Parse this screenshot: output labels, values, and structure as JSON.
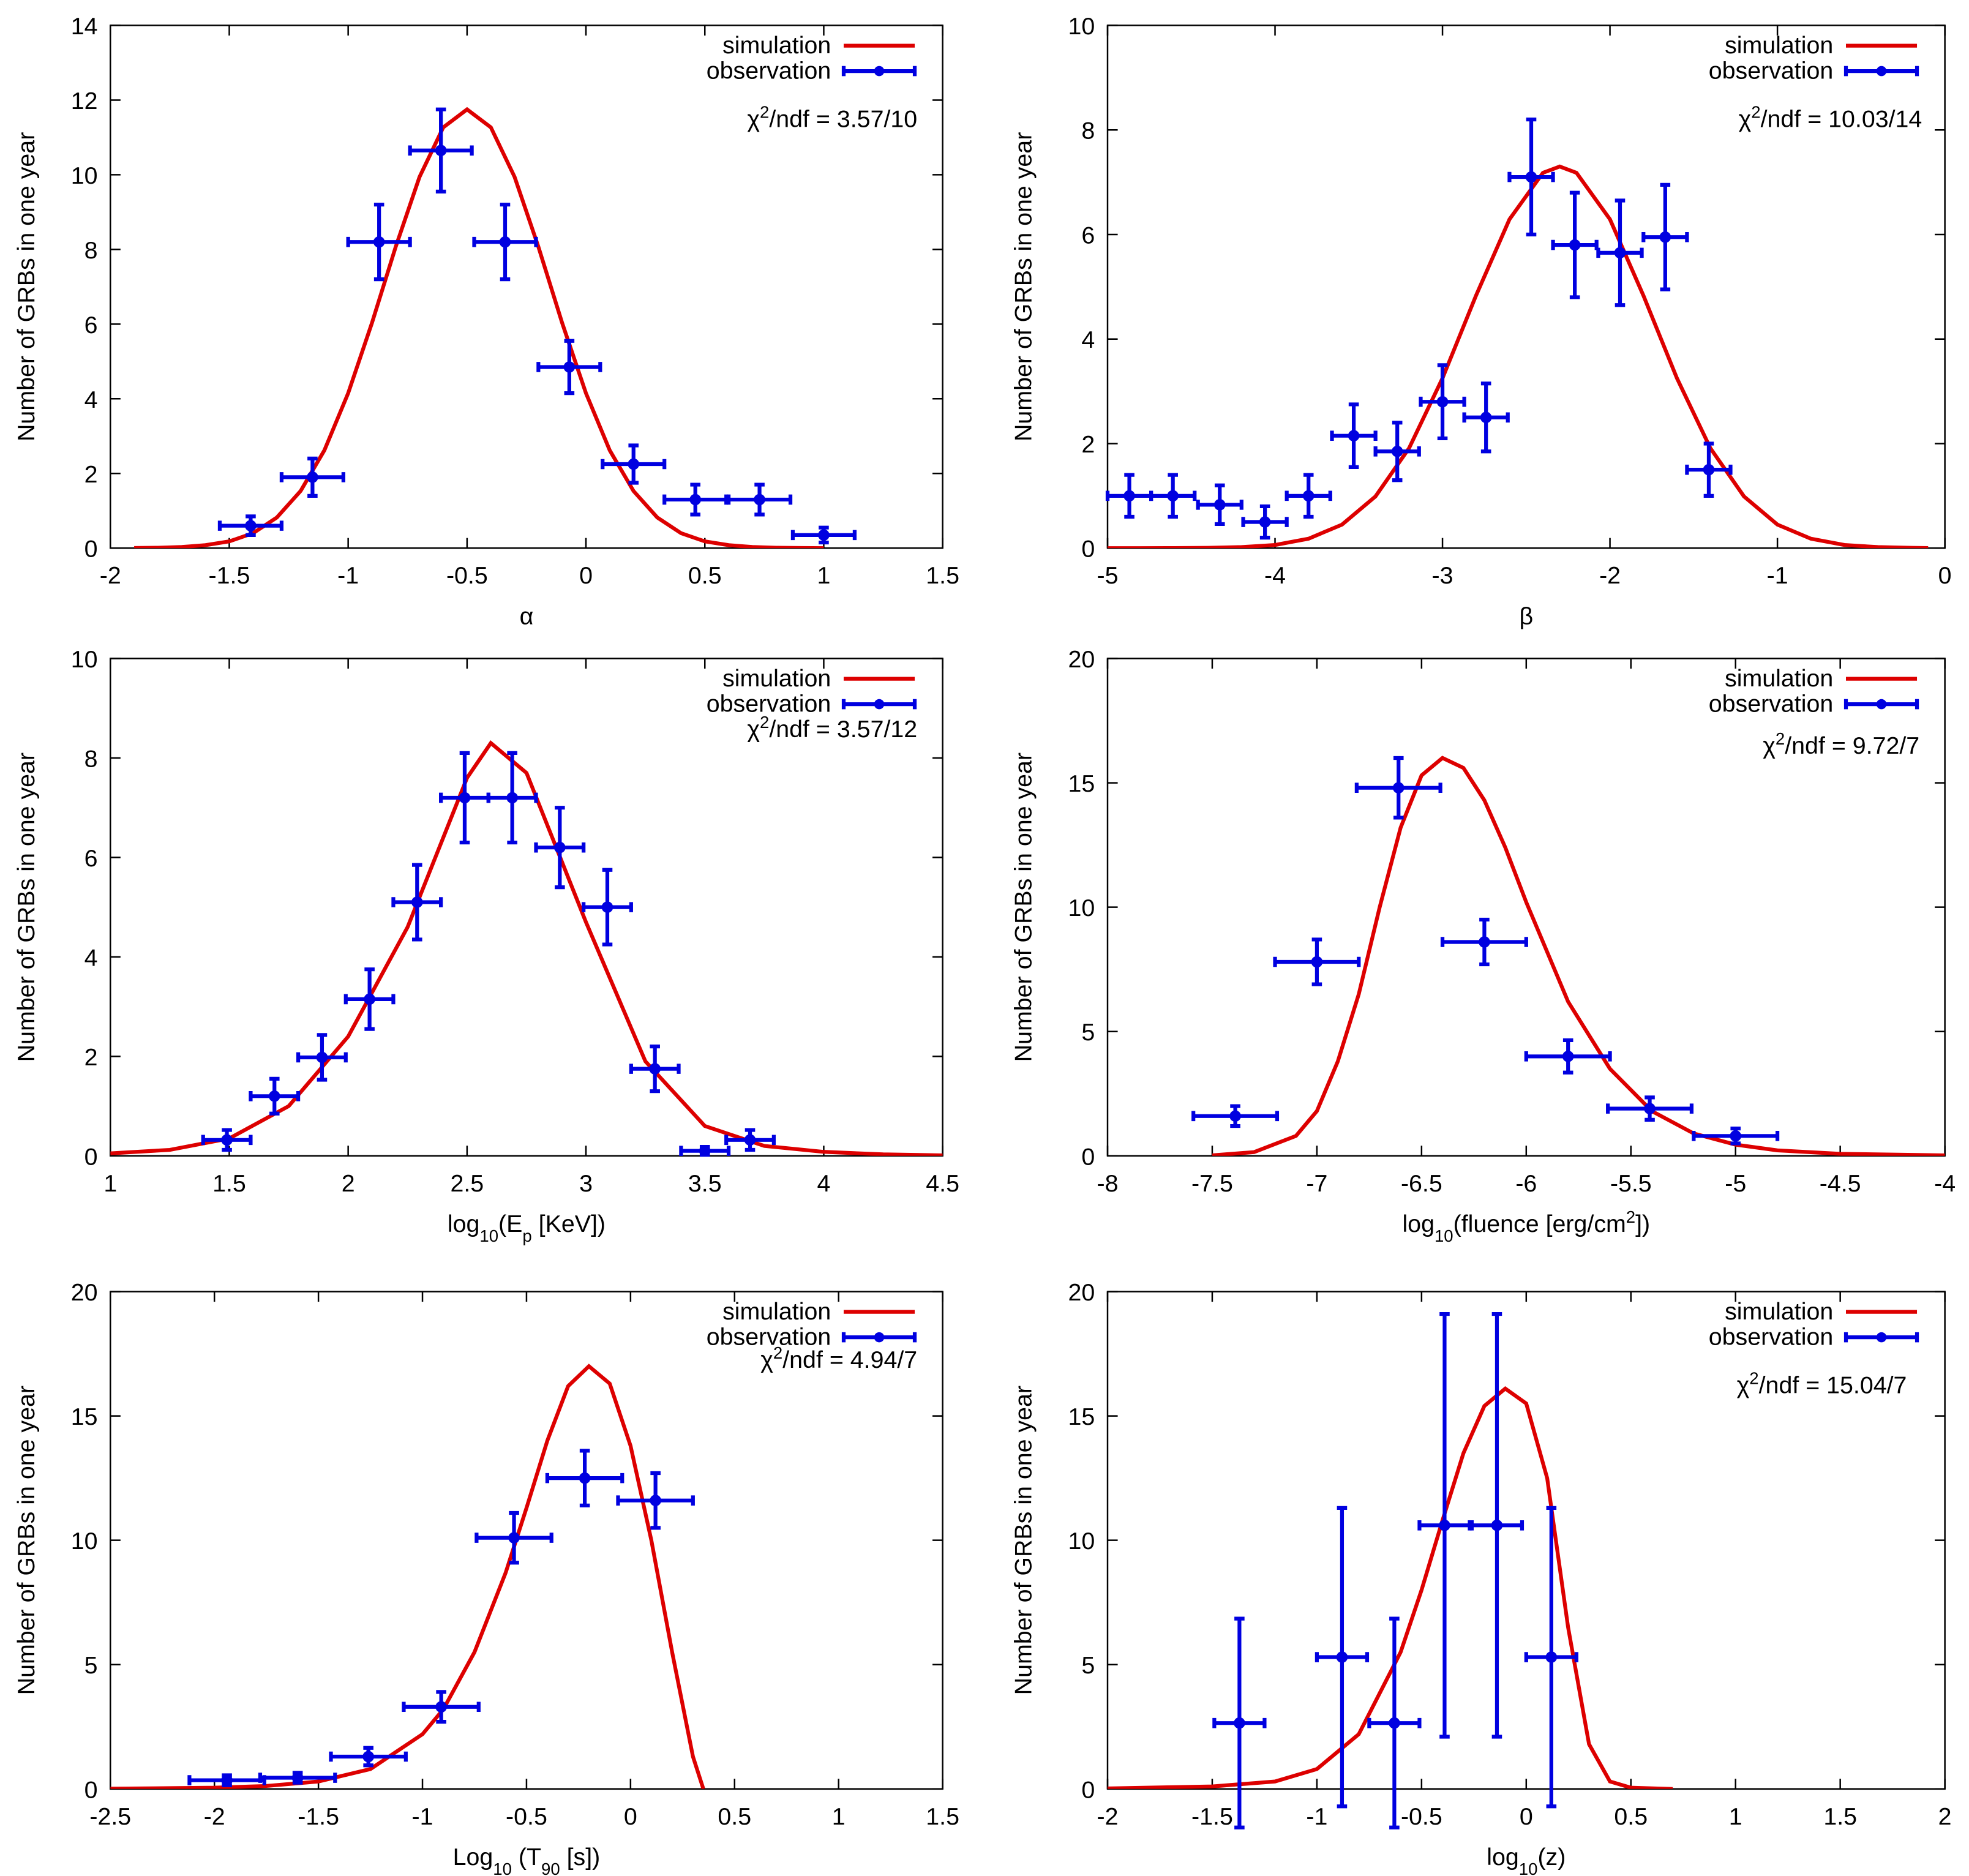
{
  "chart_data": [
    {
      "type": "line",
      "ylabel": "Number of GRBs in one year",
      "xlabel": [
        {
          "text": "α"
        }
      ],
      "annotation": [
        {
          "text": "χ"
        },
        {
          "text": "2",
          "shift": "super"
        },
        {
          "text": "/ndf = 3.57/10"
        }
      ],
      "xlim": [
        -2,
        1.5
      ],
      "xticks": [
        -2,
        -1.5,
        -1,
        -0.5,
        0,
        0.5,
        1,
        1.5
      ],
      "ylim": [
        0,
        14
      ],
      "yticks": [
        0,
        2,
        4,
        6,
        8,
        10,
        12,
        14
      ],
      "series": [
        {
          "name": "simulation",
          "style": "line",
          "color": "#dd0000",
          "x": [
            -1.9,
            -1.8,
            -1.7,
            -1.6,
            -1.5,
            -1.4,
            -1.3,
            -1.2,
            -1.1,
            -1.0,
            -0.9,
            -0.8,
            -0.7,
            -0.6,
            -0.5,
            -0.4,
            -0.3,
            -0.2,
            -0.1,
            0,
            0.1,
            0.2,
            0.3,
            0.4,
            0.5,
            0.6,
            0.7,
            0.8,
            0.9,
            1.0
          ],
          "values": [
            0.003,
            0.01,
            0.03,
            0.08,
            0.18,
            0.4,
            0.82,
            1.53,
            2.62,
            4.15,
            6.03,
            8.07,
            9.94,
            11.27,
            11.75,
            11.27,
            9.94,
            8.07,
            6.03,
            4.15,
            2.62,
            1.53,
            0.82,
            0.4,
            0.18,
            0.08,
            0.03,
            0.01,
            0.003,
            0
          ]
        },
        {
          "name": "observation",
          "style": "errorbar",
          "color": "#0000e0",
          "x": [
            -1.41,
            -1.15,
            -0.87,
            -0.61,
            -0.34,
            -0.07,
            0.2,
            0.46,
            0.73,
            1.0
          ],
          "values": [
            0.6,
            1.9,
            8.2,
            10.65,
            8.2,
            4.85,
            2.25,
            1.3,
            1.3,
            0.35
          ],
          "yerr": [
            0.25,
            0.5,
            1.0,
            1.1,
            1.0,
            0.7,
            0.5,
            0.4,
            0.4,
            0.2
          ],
          "xerr": [
            0.13,
            0.13,
            0.13,
            0.13,
            0.13,
            0.13,
            0.13,
            0.13,
            0.13,
            0.13
          ]
        }
      ]
    },
    {
      "type": "line",
      "ylabel": "Number of GRBs in one year",
      "xlabel": [
        {
          "text": "β"
        }
      ],
      "annotation": [
        {
          "text": "χ"
        },
        {
          "text": "2",
          "shift": "super"
        },
        {
          "text": "/ndf = 10.03/14"
        }
      ],
      "xlim": [
        -5,
        0
      ],
      "xticks": [
        -5,
        -4,
        -3,
        -2,
        -1,
        0
      ],
      "ylim": [
        0,
        10
      ],
      "yticks": [
        0,
        2,
        4,
        6,
        8,
        10
      ],
      "series": [
        {
          "name": "simulation",
          "style": "line",
          "color": "#dd0000",
          "x": [
            -5,
            -4.8,
            -4.6,
            -4.4,
            -4.2,
            -4.0,
            -3.8,
            -3.6,
            -3.4,
            -3.2,
            -3.0,
            -2.8,
            -2.6,
            -2.4,
            -2.3,
            -2.2,
            -2.0,
            -1.8,
            -1.6,
            -1.4,
            -1.2,
            -1.0,
            -0.8,
            -0.6,
            -0.4,
            -0.2,
            -0.1
          ],
          "values": [
            0,
            0.0002,
            0.001,
            0.005,
            0.02,
            0.06,
            0.18,
            0.45,
            0.99,
            1.91,
            3.25,
            4.83,
            6.29,
            7.18,
            7.3,
            7.18,
            6.29,
            4.83,
            3.25,
            1.91,
            0.99,
            0.45,
            0.18,
            0.06,
            0.02,
            0.005,
            0.002
          ]
        },
        {
          "name": "observation",
          "style": "errorbar",
          "color": "#0000e0",
          "x": [
            -4.87,
            -4.61,
            -4.33,
            -4.06,
            -3.8,
            -3.53,
            -3.27,
            -3.0,
            -2.74,
            -2.47,
            -2.21,
            -1.94,
            -1.67,
            -1.41
          ],
          "values": [
            1.0,
            1.0,
            0.83,
            0.5,
            1.0,
            2.15,
            1.85,
            2.8,
            2.5,
            7.1,
            5.8,
            5.65,
            5.95,
            1.5
          ],
          "yerr": [
            0.4,
            0.4,
            0.37,
            0.3,
            0.4,
            0.6,
            0.55,
            0.7,
            0.65,
            1.1,
            1.0,
            1.0,
            1.0,
            0.5
          ],
          "xerr": [
            0.13,
            0.13,
            0.13,
            0.13,
            0.13,
            0.13,
            0.13,
            0.13,
            0.13,
            0.13,
            0.13,
            0.13,
            0.13,
            0.13
          ]
        }
      ]
    },
    {
      "type": "line",
      "ylabel": "Number of GRBs in one year",
      "xlabel": [
        {
          "text": "log"
        },
        {
          "text": "10",
          "shift": "sub"
        },
        {
          "text": "(E"
        },
        {
          "text": "p",
          "shift": "sub"
        },
        {
          "text": " [KeV])"
        }
      ],
      "annotation": [
        {
          "text": "χ"
        },
        {
          "text": "2",
          "shift": "super"
        },
        {
          "text": "/ndf = 3.57/12"
        }
      ],
      "xlim": [
        1,
        4.5
      ],
      "xticks": [
        1,
        1.5,
        2,
        2.5,
        3,
        3.5,
        4,
        4.5
      ],
      "ylim": [
        0,
        10
      ],
      "yticks": [
        0,
        2,
        4,
        6,
        8,
        10
      ],
      "series": [
        {
          "name": "simulation",
          "style": "line",
          "color": "#dd0000",
          "x": [
            1.0,
            1.25,
            1.5,
            1.75,
            2.0,
            2.25,
            2.5,
            2.6,
            2.75,
            3.0,
            3.25,
            3.5,
            3.75,
            4.0,
            4.25,
            4.5
          ],
          "values": [
            0.05,
            0.12,
            0.35,
            1.0,
            2.4,
            4.6,
            7.6,
            8.3,
            7.7,
            4.7,
            1.9,
            0.6,
            0.2,
            0.08,
            0.03,
            0.01
          ]
        },
        {
          "name": "observation",
          "style": "errorbar",
          "color": "#0000e0",
          "x": [
            1.49,
            1.69,
            1.89,
            2.09,
            2.29,
            2.49,
            2.69,
            2.89,
            3.09,
            3.29,
            3.5,
            3.69
          ],
          "values": [
            0.32,
            1.2,
            1.98,
            3.15,
            5.1,
            7.2,
            7.2,
            6.2,
            5.0,
            1.75,
            0.1,
            0.32
          ],
          "yerr": [
            0.2,
            0.35,
            0.45,
            0.6,
            0.75,
            0.9,
            0.9,
            0.8,
            0.75,
            0.45,
            0.08,
            0.2
          ],
          "xerr": [
            0.1,
            0.1,
            0.1,
            0.1,
            0.1,
            0.1,
            0.1,
            0.1,
            0.1,
            0.1,
            0.1,
            0.1
          ]
        }
      ]
    },
    {
      "type": "line",
      "ylabel": "Number of GRBs in one year",
      "xlabel": [
        {
          "text": "log"
        },
        {
          "text": "10",
          "shift": "sub"
        },
        {
          "text": "(fluence [erg/cm"
        },
        {
          "text": "2",
          "shift": "super"
        },
        {
          "text": "])"
        }
      ],
      "annotation": [
        {
          "text": "χ"
        },
        {
          "text": "2",
          "shift": "super"
        },
        {
          "text": "/ndf = 9.72/7"
        }
      ],
      "xlim": [
        -8,
        -4
      ],
      "xticks": [
        -8,
        -7.5,
        -7,
        -6.5,
        -6,
        -5.5,
        -5,
        -4.5,
        -4
      ],
      "ylim": [
        0,
        20
      ],
      "yticks": [
        0,
        5,
        10,
        15,
        20
      ],
      "series": [
        {
          "name": "simulation",
          "style": "line",
          "color": "#dd0000",
          "x": [
            -7.5,
            -7.3,
            -7.1,
            -7.0,
            -6.9,
            -6.8,
            -6.7,
            -6.6,
            -6.5,
            -6.4,
            -6.3,
            -6.2,
            -6.1,
            -6.0,
            -5.8,
            -5.6,
            -5.4,
            -5.2,
            -5.0,
            -4.8,
            -4.5,
            -4.0
          ],
          "values": [
            0.02,
            0.15,
            0.8,
            1.8,
            3.8,
            6.5,
            10,
            13.2,
            15.3,
            16.0,
            15.6,
            14.3,
            12.4,
            10.2,
            6.2,
            3.5,
            1.8,
            0.9,
            0.45,
            0.22,
            0.08,
            0.02
          ]
        },
        {
          "name": "observation",
          "style": "errorbar",
          "color": "#0000e0",
          "x": [
            -7.39,
            -7.0,
            -6.61,
            -6.2,
            -5.8,
            -5.41,
            -5.0
          ],
          "values": [
            1.6,
            7.8,
            14.8,
            8.6,
            4.0,
            1.9,
            0.8
          ],
          "yerr": [
            0.4,
            0.9,
            1.2,
            0.9,
            0.65,
            0.45,
            0.3
          ],
          "xerr": [
            0.2,
            0.2,
            0.2,
            0.2,
            0.2,
            0.2,
            0.2
          ]
        }
      ]
    },
    {
      "type": "line",
      "ylabel": "Number of GRBs in one year",
      "xlabel": [
        {
          "text": "Log"
        },
        {
          "text": "10",
          "shift": "sub"
        },
        {
          "text": " (T"
        },
        {
          "text": "90",
          "shift": "sub"
        },
        {
          "text": " [s])"
        }
      ],
      "annotation": [
        {
          "text": "χ"
        },
        {
          "text": "2",
          "shift": "super"
        },
        {
          "text": "/ndf = 4.94/7"
        }
      ],
      "xlim": [
        -2.5,
        1.5
      ],
      "xticks": [
        -2.5,
        -2,
        -1.5,
        -1,
        -0.5,
        0,
        0.5,
        1,
        1.5
      ],
      "ylim": [
        0,
        20
      ],
      "yticks": [
        0,
        5,
        10,
        15,
        20
      ],
      "series": [
        {
          "name": "simulation",
          "style": "line",
          "color": "#dd0000",
          "x": [
            -2.5,
            -2.0,
            -1.75,
            -1.5,
            -1.25,
            -1.0,
            -0.9,
            -0.75,
            -0.6,
            -0.5,
            -0.4,
            -0.3,
            -0.2,
            -0.1,
            0,
            0.1,
            0.2,
            0.3,
            0.35
          ],
          "values": [
            0.01,
            0.05,
            0.12,
            0.3,
            0.8,
            2.2,
            3.2,
            5.5,
            8.7,
            11.3,
            14.0,
            16.2,
            17.0,
            16.3,
            13.8,
            10,
            5.5,
            1.3,
            0
          ]
        },
        {
          "name": "observation",
          "style": "errorbar",
          "color": "#0000e0",
          "x": [
            -1.94,
            -1.6,
            -1.26,
            -0.91,
            -0.56,
            -0.22,
            0.12
          ],
          "values": [
            0.35,
            0.45,
            1.3,
            3.3,
            10.1,
            12.5,
            11.6
          ],
          "yerr": [
            0.2,
            0.2,
            0.35,
            0.6,
            1.0,
            1.1,
            1.1
          ],
          "xerr": [
            0.18,
            0.18,
            0.18,
            0.18,
            0.18,
            0.18,
            0.18
          ]
        }
      ]
    },
    {
      "type": "line",
      "ylabel": "Number of GRBs in one year",
      "xlabel": [
        {
          "text": "log"
        },
        {
          "text": "10",
          "shift": "sub"
        },
        {
          "text": "(z)"
        }
      ],
      "annotation": [
        {
          "text": "χ"
        },
        {
          "text": "2",
          "shift": "super"
        },
        {
          "text": "/ndf = 15.04/7"
        }
      ],
      "xlim": [
        -2,
        2
      ],
      "xticks": [
        -2,
        -1.5,
        -1,
        -0.5,
        0,
        0.5,
        1,
        1.5,
        2
      ],
      "ylim": [
        0,
        20
      ],
      "yticks": [
        0,
        5,
        10,
        15,
        20
      ],
      "series": [
        {
          "name": "simulation",
          "style": "line",
          "color": "#dd0000",
          "x": [
            -2,
            -1.5,
            -1.2,
            -1.0,
            -0.8,
            -0.6,
            -0.5,
            -0.4,
            -0.3,
            -0.2,
            -0.1,
            0,
            0.1,
            0.2,
            0.3,
            0.4,
            0.5,
            0.7
          ],
          "values": [
            0.02,
            0.1,
            0.3,
            0.8,
            2.2,
            5.5,
            8,
            10.8,
            13.5,
            15.4,
            16.1,
            15.5,
            12.5,
            6.5,
            1.8,
            0.3,
            0.05,
            0
          ]
        },
        {
          "name": "observation",
          "style": "errorbar",
          "color": "#0000e0",
          "x": [
            -1.37,
            -0.88,
            -0.63,
            -0.39,
            -0.14,
            0.12
          ],
          "values": [
            2.65,
            5.3,
            2.65,
            10.6,
            10.6,
            5.3
          ],
          "yerr": [
            4.2,
            6.0,
            4.2,
            8.5,
            8.5,
            6.0
          ],
          "xerr": [
            0.12,
            0.12,
            0.12,
            0.12,
            0.12,
            0.12
          ]
        }
      ]
    }
  ]
}
